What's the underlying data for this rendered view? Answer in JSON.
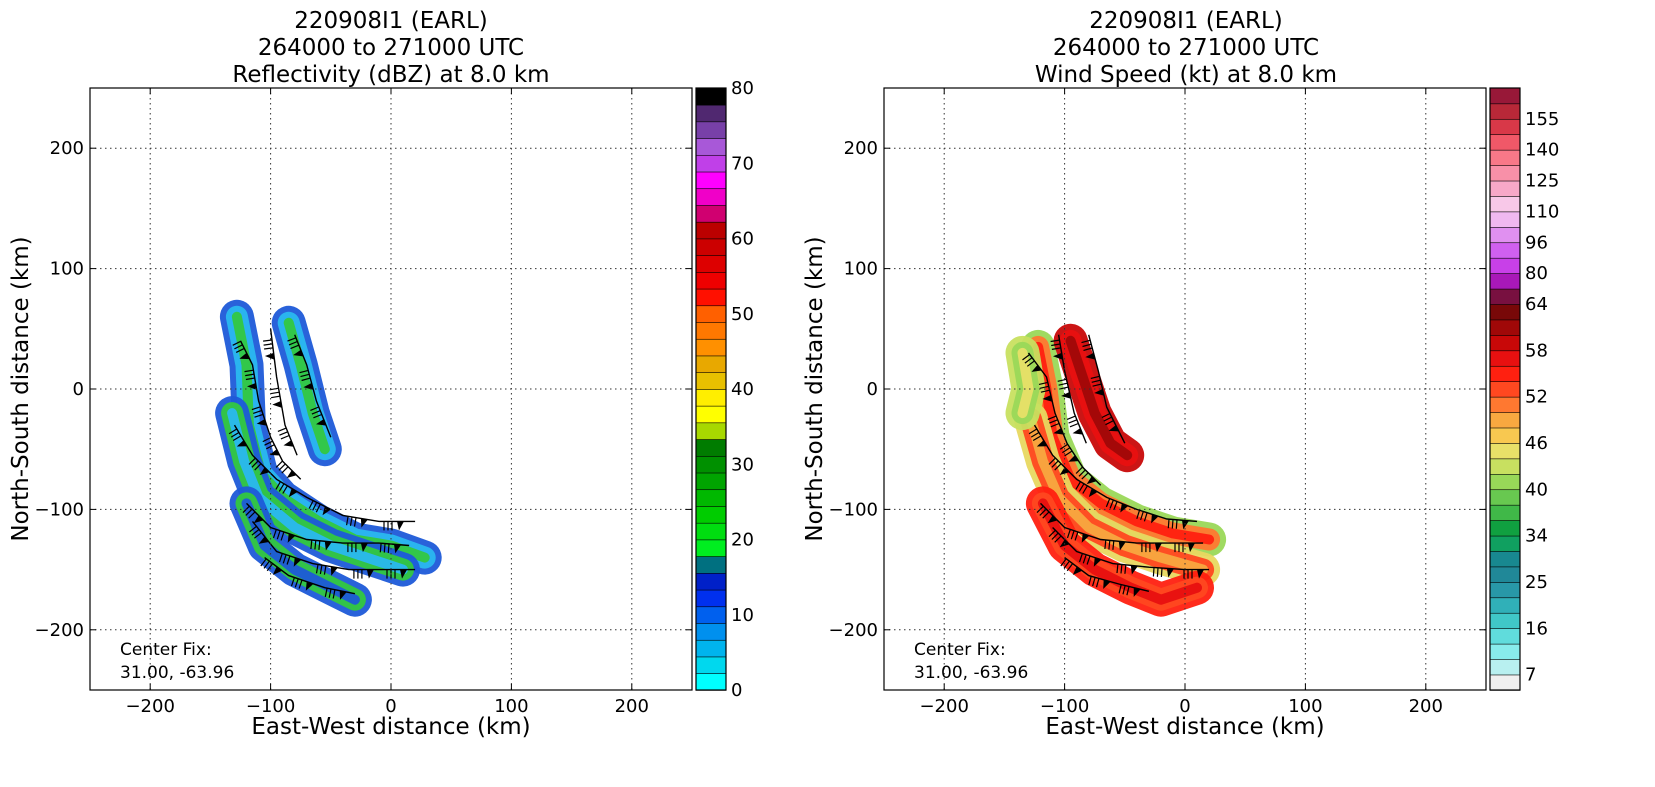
{
  "chart_data": [
    {
      "type": "heatmap",
      "title_lines": [
        "220908I1 (EARL)",
        "264000 to 271000 UTC",
        "Reflectivity (dBZ) at 8.0 km"
      ],
      "xlabel": "East-West distance (km)",
      "ylabel": "North-South distance (km)",
      "xlim": [
        -250,
        250
      ],
      "ylim": [
        -250,
        250
      ],
      "xticks": [
        -200,
        -100,
        0,
        100,
        200
      ],
      "yticks": [
        -200,
        -100,
        0,
        100,
        200
      ],
      "grid": true,
      "annotation_lines": [
        "Center Fix:",
        "31.00, -63.96"
      ],
      "colorbar": {
        "min": 0,
        "max": 80,
        "tick_values": [
          0,
          10,
          20,
          30,
          40,
          50,
          60,
          70,
          80
        ],
        "tick_labels": [
          "0",
          "10",
          "20",
          "30",
          "40",
          "50",
          "60",
          "70",
          "80"
        ],
        "colors": [
          "#00ffff",
          "#00d8ee",
          "#00b4ee",
          "#0090ee",
          "#0060ee",
          "#0030ee",
          "#0020c8",
          "#007080",
          "#00ee20",
          "#00dd10",
          "#00cc00",
          "#00b800",
          "#00a400",
          "#009000",
          "#007c00",
          "#a8d800",
          "#ffff00",
          "#ffee00",
          "#e8c000",
          "#e8a800",
          "#ff9000",
          "#ff7800",
          "#ff6000",
          "#ff1000",
          "#ee0000",
          "#dd0000",
          "#cc0000",
          "#bb0000",
          "#d00070",
          "#f000c8",
          "#ff00ff",
          "#c040e8",
          "#a858d8",
          "#7840a8",
          "#502870",
          "#000000"
        ]
      },
      "echo_field": {
        "bands": [
          {
            "name": "inner-band",
            "colors": [
              "#1e5ad8",
              "#2ab8f0",
              "#33c840"
            ],
            "path_km": [
              [
                -128,
                60
              ],
              [
                -120,
                20
              ],
              [
                -118,
                -30
              ],
              [
                -108,
                -70
              ],
              [
                -90,
                -90
              ],
              [
                -60,
                -110
              ],
              [
                -30,
                -125
              ],
              [
                0,
                -130
              ],
              [
                28,
                -140
              ]
            ]
          },
          {
            "name": "middle-band",
            "colors": [
              "#1e5ad8",
              "#33c840",
              "#2ab8f0"
            ],
            "path_km": [
              [
                -132,
                -20
              ],
              [
                -122,
                -60
              ],
              [
                -110,
                -90
              ],
              [
                -80,
                -115
              ],
              [
                -50,
                -130
              ],
              [
                -20,
                -140
              ],
              [
                10,
                -150
              ]
            ]
          },
          {
            "name": "outer-band",
            "colors": [
              "#1e5ad8",
              "#33c840",
              "#1e5ad8"
            ],
            "path_km": [
              [
                -120,
                -95
              ],
              [
                -105,
                -130
              ],
              [
                -80,
                -150
              ],
              [
                -50,
                -165
              ],
              [
                -30,
                -175
              ]
            ]
          },
          {
            "name": "north-band",
            "colors": [
              "#1e5ad8",
              "#2ab8f0",
              "#33c840"
            ],
            "path_km": [
              [
                -85,
                55
              ],
              [
                -75,
                20
              ],
              [
                -65,
                -20
              ],
              [
                -55,
                -50
              ]
            ]
          }
        ]
      },
      "wind_barbs": [
        {
          "path_km": [
            [
              -125,
              40
            ],
            [
              -115,
              20
            ],
            [
              -110,
              -10
            ],
            [
              -100,
              -40
            ],
            [
              -90,
              -60
            ],
            [
              -75,
              -75
            ]
          ]
        },
        {
          "path_km": [
            [
              -100,
              50
            ],
            [
              -95,
              10
            ],
            [
              -88,
              -30
            ],
            [
              -78,
              -55
            ]
          ]
        },
        {
          "path_km": [
            [
              -80,
              45
            ],
            [
              -70,
              20
            ],
            [
              -62,
              -10
            ],
            [
              -50,
              -40
            ]
          ]
        },
        {
          "path_km": [
            [
              -130,
              -30
            ],
            [
              -115,
              -55
            ],
            [
              -95,
              -75
            ],
            [
              -70,
              -90
            ],
            [
              -40,
              -105
            ],
            [
              -10,
              -110
            ],
            [
              20,
              -110
            ]
          ]
        },
        {
          "path_km": [
            [
              -120,
              -95
            ],
            [
              -100,
              -115
            ],
            [
              -70,
              -125
            ],
            [
              -40,
              -128
            ],
            [
              -10,
              -128
            ],
            [
              15,
              -130
            ]
          ]
        },
        {
          "path_km": [
            [
              -115,
              -110
            ],
            [
              -95,
              -135
            ],
            [
              -65,
              -145
            ],
            [
              -35,
              -150
            ],
            [
              -5,
              -150
            ],
            [
              20,
              -150
            ]
          ]
        },
        {
          "path_km": [
            [
              -105,
              -140
            ],
            [
              -85,
              -155
            ],
            [
              -55,
              -165
            ],
            [
              -30,
              -170
            ]
          ]
        }
      ]
    },
    {
      "type": "heatmap",
      "title_lines": [
        "220908I1 (EARL)",
        "264000 to 271000 UTC",
        "Wind Speed (kt) at 8.0 km"
      ],
      "xlabel": "East-West distance (km)",
      "ylabel": "North-South distance (km)",
      "xlim": [
        -250,
        250
      ],
      "ylim": [
        -250,
        250
      ],
      "xticks": [
        -200,
        -100,
        0,
        100,
        200
      ],
      "yticks": [
        -200,
        -100,
        0,
        100,
        200
      ],
      "grid": true,
      "annotation_lines": [
        "Center Fix:",
        "31.00, -63.96"
      ],
      "colorbar": {
        "min": 4,
        "max": 160,
        "tick_values": [
          7,
          16,
          25,
          34,
          40,
          46,
          52,
          58,
          64,
          80,
          96,
          110,
          125,
          140,
          155
        ],
        "tick_labels": [
          "7",
          "16",
          "25",
          "34",
          "40",
          "46",
          "52",
          "58",
          "64",
          "80",
          "96",
          "110",
          "125",
          "140",
          "155"
        ],
        "boundaries": [
          4,
          7,
          10,
          13,
          16,
          19,
          22,
          25,
          28,
          31,
          34,
          36,
          38,
          40,
          42,
          44,
          46,
          48,
          50,
          52,
          54,
          56,
          58,
          60,
          62,
          64,
          72,
          80,
          88,
          96,
          103,
          110,
          117,
          125,
          132,
          140,
          147,
          155,
          160
        ],
        "colors": [
          "#f0f0f0",
          "#b8f0f0",
          "#88ecec",
          "#60dcdc",
          "#40c8c8",
          "#30b0b8",
          "#2898a8",
          "#208898",
          "#188890",
          "#10a060",
          "#10a040",
          "#40b848",
          "#68c850",
          "#98d858",
          "#c8e060",
          "#e8e068",
          "#f8c850",
          "#f8a840",
          "#ff7830",
          "#ff4820",
          "#ff2010",
          "#e81010",
          "#c80808",
          "#a00808",
          "#780808",
          "#781040",
          "#a818b8",
          "#c840e8",
          "#d060f0",
          "#e090f0",
          "#f0b8f0",
          "#f8c8e8",
          "#f8a8c8",
          "#f890a8",
          "#f87888",
          "#f05868",
          "#d83848",
          "#b82838",
          "#981838"
        ]
      },
      "echo_field": {
        "bands": [
          {
            "name": "inner-band",
            "colors": [
              "#9ad858",
              "#ff7830",
              "#ff2010"
            ],
            "path_km": [
              [
                -122,
                35
              ],
              [
                -115,
                0
              ],
              [
                -110,
                -40
              ],
              [
                -95,
                -75
              ],
              [
                -70,
                -95
              ],
              [
                -40,
                -110
              ],
              [
                -10,
                -120
              ],
              [
                20,
                -125
              ]
            ]
          },
          {
            "name": "middle-band",
            "colors": [
              "#e8d860",
              "#ff4820",
              "#f8a840"
            ],
            "path_km": [
              [
                -128,
                -25
              ],
              [
                -118,
                -60
              ],
              [
                -105,
                -90
              ],
              [
                -80,
                -115
              ],
              [
                -50,
                -130
              ],
              [
                -20,
                -140
              ],
              [
                15,
                -150
              ]
            ]
          },
          {
            "name": "outer-band",
            "colors": [
              "#ff2010",
              "#ff4820",
              "#e81010"
            ],
            "path_km": [
              [
                -118,
                -95
              ],
              [
                -100,
                -130
              ],
              [
                -75,
                -150
              ],
              [
                -45,
                -165
              ],
              [
                -20,
                -175
              ],
              [
                10,
                -165
              ]
            ]
          },
          {
            "name": "north-band",
            "colors": [
              "#c80808",
              "#e81010",
              "#a00808"
            ],
            "path_km": [
              [
                -95,
                40
              ],
              [
                -85,
                10
              ],
              [
                -75,
                -20
              ],
              [
                -62,
                -45
              ],
              [
                -48,
                -55
              ]
            ]
          },
          {
            "name": "west-edge",
            "colors": [
              "#c8e060",
              "#9ad858",
              "#e8e068"
            ],
            "path_km": [
              [
                -135,
                30
              ],
              [
                -130,
                0
              ],
              [
                -135,
                -20
              ]
            ]
          }
        ]
      },
      "wind_barbs": [
        {
          "path_km": [
            [
              -130,
              30
            ],
            [
              -115,
              10
            ],
            [
              -108,
              -20
            ],
            [
              -98,
              -45
            ],
            [
              -85,
              -65
            ],
            [
              -70,
              -80
            ]
          ]
        },
        {
          "path_km": [
            [
              -105,
              45
            ],
            [
              -100,
              15
            ],
            [
              -92,
              -20
            ],
            [
              -82,
              -45
            ]
          ]
        },
        {
          "path_km": [
            [
              -80,
              45
            ],
            [
              -72,
              15
            ],
            [
              -65,
              -15
            ],
            [
              -50,
              -45
            ]
          ]
        },
        {
          "path_km": [
            [
              -125,
              -30
            ],
            [
              -110,
              -55
            ],
            [
              -90,
              -75
            ],
            [
              -65,
              -90
            ],
            [
              -40,
              -100
            ],
            [
              -15,
              -108
            ],
            [
              10,
              -110
            ]
          ]
        },
        {
          "path_km": [
            [
              -120,
              -95
            ],
            [
              -100,
              -115
            ],
            [
              -70,
              -125
            ],
            [
              -40,
              -128
            ],
            [
              -10,
              -128
            ],
            [
              15,
              -128
            ]
          ]
        },
        {
          "path_km": [
            [
              -110,
              -115
            ],
            [
              -90,
              -135
            ],
            [
              -60,
              -145
            ],
            [
              -30,
              -148
            ],
            [
              0,
              -150
            ],
            [
              20,
              -150
            ]
          ]
        },
        {
          "path_km": [
            [
              -100,
              -140
            ],
            [
              -80,
              -155
            ],
            [
              -55,
              -162
            ],
            [
              -30,
              -168
            ]
          ]
        }
      ]
    }
  ]
}
